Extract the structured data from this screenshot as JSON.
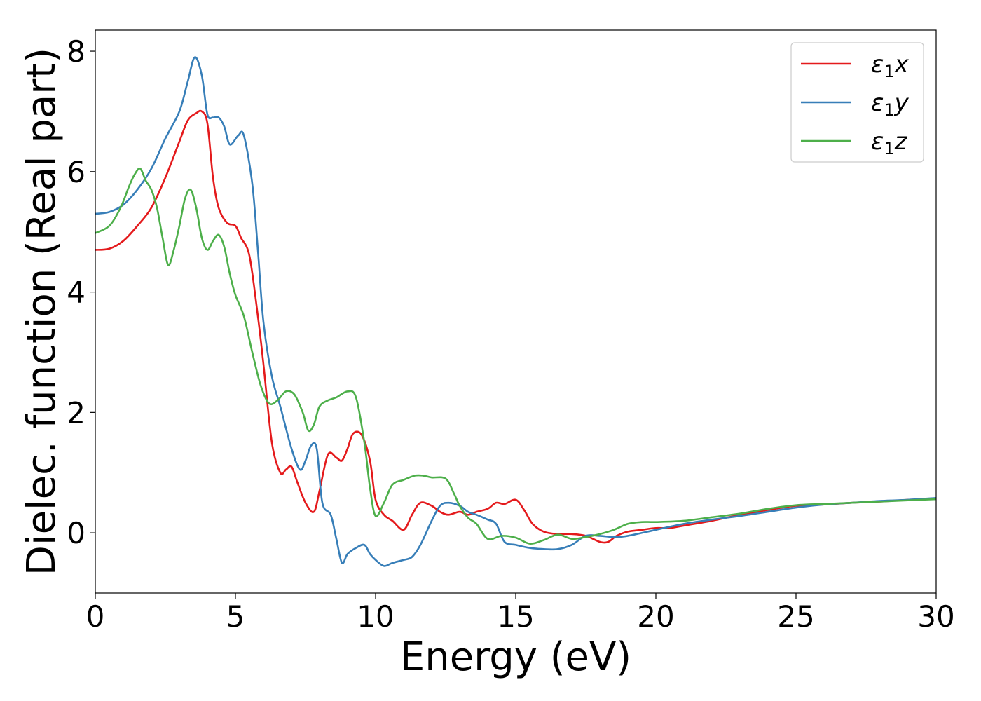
{
  "chart_data": {
    "type": "line",
    "xlabel": "Energy (eV)",
    "ylabel": "Dielec. function (Real part)",
    "xlim": [
      0,
      30
    ],
    "ylim": [
      -1,
      8.35
    ],
    "xticks": [
      0,
      5,
      10,
      15,
      20,
      25,
      30
    ],
    "yticks": [
      0,
      2,
      4,
      6,
      8
    ],
    "grid": false,
    "legend_position": "top-right",
    "series": [
      {
        "name": "ε₁x",
        "legend_base": "ε",
        "legend_sub": "1",
        "legend_var": "x",
        "color": "#e41a1c",
        "x": [
          0,
          0.5,
          1,
          1.5,
          2,
          2.5,
          3,
          3.3,
          3.6,
          3.8,
          4,
          4.2,
          4.4,
          4.7,
          5,
          5.2,
          5.5,
          5.8,
          6,
          6.3,
          6.6,
          6.8,
          7,
          7.2,
          7.5,
          7.8,
          8,
          8.3,
          8.6,
          8.8,
          9,
          9.2,
          9.5,
          9.8,
          10,
          10.3,
          10.6,
          11,
          11.3,
          11.6,
          12,
          12.3,
          12.6,
          13,
          13.3,
          13.6,
          14,
          14.3,
          14.6,
          15,
          15.3,
          15.6,
          16,
          16.5,
          17,
          17.5,
          18,
          18.3,
          18.6,
          19,
          19.5,
          20,
          20.5,
          21,
          22,
          23,
          24,
          25,
          26,
          27,
          28,
          29,
          30
        ],
        "y": [
          4.7,
          4.72,
          4.85,
          5.1,
          5.4,
          5.9,
          6.5,
          6.85,
          6.97,
          7.0,
          6.8,
          5.9,
          5.4,
          5.15,
          5.1,
          4.9,
          4.6,
          3.6,
          2.8,
          1.5,
          1.0,
          1.05,
          1.1,
          0.85,
          0.5,
          0.35,
          0.7,
          1.3,
          1.25,
          1.2,
          1.4,
          1.65,
          1.63,
          1.2,
          0.55,
          0.3,
          0.2,
          0.05,
          0.3,
          0.5,
          0.45,
          0.35,
          0.3,
          0.35,
          0.3,
          0.35,
          0.4,
          0.5,
          0.48,
          0.55,
          0.38,
          0.15,
          0.02,
          -0.02,
          -0.02,
          -0.05,
          -0.15,
          -0.15,
          -0.05,
          0.02,
          0.05,
          0.08,
          0.08,
          0.12,
          0.2,
          0.3,
          0.38,
          0.45,
          0.47,
          0.5,
          0.52,
          0.55,
          0.57
        ]
      },
      {
        "name": "ε₁y",
        "legend_base": "ε",
        "legend_sub": "1",
        "legend_var": "y",
        "color": "#377eb8",
        "x": [
          0,
          0.5,
          1,
          1.5,
          2,
          2.5,
          3,
          3.3,
          3.55,
          3.8,
          4,
          4.2,
          4.4,
          4.6,
          4.8,
          5.1,
          5.3,
          5.6,
          5.8,
          6,
          6.3,
          6.6,
          7,
          7.3,
          7.5,
          7.7,
          7.9,
          8.1,
          8.4,
          8.6,
          8.8,
          9,
          9.3,
          9.6,
          9.8,
          10,
          10.3,
          10.6,
          11,
          11.3,
          11.6,
          12,
          12.3,
          12.6,
          13,
          13.3,
          13.6,
          14,
          14.3,
          14.6,
          15,
          15.5,
          16,
          16.5,
          17,
          17.5,
          18,
          18.5,
          19,
          20,
          21,
          22,
          23,
          24,
          25,
          26,
          27,
          28,
          29,
          30
        ],
        "y": [
          5.3,
          5.33,
          5.45,
          5.7,
          6.05,
          6.55,
          7.0,
          7.5,
          7.9,
          7.6,
          6.95,
          6.9,
          6.9,
          6.75,
          6.45,
          6.6,
          6.6,
          5.8,
          4.7,
          3.5,
          2.6,
          2.1,
          1.4,
          1.05,
          1.2,
          1.45,
          1.4,
          0.5,
          0.3,
          -0.1,
          -0.5,
          -0.35,
          -0.25,
          -0.2,
          -0.35,
          -0.45,
          -0.55,
          -0.5,
          -0.45,
          -0.4,
          -0.2,
          0.2,
          0.45,
          0.5,
          0.45,
          0.35,
          0.3,
          0.22,
          0.15,
          -0.15,
          -0.2,
          -0.25,
          -0.27,
          -0.27,
          -0.2,
          -0.05,
          -0.05,
          -0.07,
          -0.05,
          0.05,
          0.15,
          0.22,
          0.28,
          0.35,
          0.42,
          0.47,
          0.5,
          0.53,
          0.55,
          0.58
        ]
      },
      {
        "name": "ε₁z",
        "legend_base": "ε",
        "legend_sub": "1",
        "legend_var": "z",
        "color": "#4daf4a",
        "x": [
          0,
          0.5,
          0.9,
          1.2,
          1.4,
          1.6,
          1.8,
          2,
          2.2,
          2.4,
          2.6,
          2.8,
          3,
          3.2,
          3.4,
          3.6,
          3.8,
          4,
          4.2,
          4.4,
          4.6,
          4.8,
          5,
          5.3,
          5.6,
          5.9,
          6.2,
          6.5,
          6.8,
          7.1,
          7.4,
          7.6,
          7.8,
          8,
          8.3,
          8.6,
          9,
          9.3,
          9.6,
          9.8,
          10,
          10.3,
          10.6,
          11,
          11.4,
          11.7,
          12,
          12.5,
          12.8,
          13,
          13.3,
          13.6,
          14,
          14.5,
          15,
          15.5,
          16,
          16.5,
          17,
          17.5,
          18,
          18.5,
          19,
          19.5,
          20,
          21,
          22,
          23,
          24,
          25,
          26,
          27,
          28,
          29,
          30
        ],
        "y": [
          4.98,
          5.1,
          5.4,
          5.75,
          5.95,
          6.05,
          5.85,
          5.7,
          5.4,
          4.9,
          4.45,
          4.7,
          5.1,
          5.55,
          5.7,
          5.4,
          4.9,
          4.7,
          4.85,
          4.95,
          4.75,
          4.3,
          3.95,
          3.6,
          3.0,
          2.45,
          2.15,
          2.2,
          2.35,
          2.3,
          2.0,
          1.7,
          1.8,
          2.1,
          2.2,
          2.25,
          2.35,
          2.25,
          1.5,
          0.75,
          0.28,
          0.5,
          0.8,
          0.88,
          0.95,
          0.95,
          0.92,
          0.9,
          0.65,
          0.45,
          0.25,
          0.15,
          -0.1,
          -0.05,
          -0.08,
          -0.18,
          -0.12,
          -0.03,
          -0.1,
          -0.07,
          -0.02,
          0.05,
          0.15,
          0.18,
          0.18,
          0.2,
          0.26,
          0.32,
          0.4,
          0.46,
          0.48,
          0.5,
          0.52,
          0.54,
          0.56
        ]
      }
    ]
  }
}
